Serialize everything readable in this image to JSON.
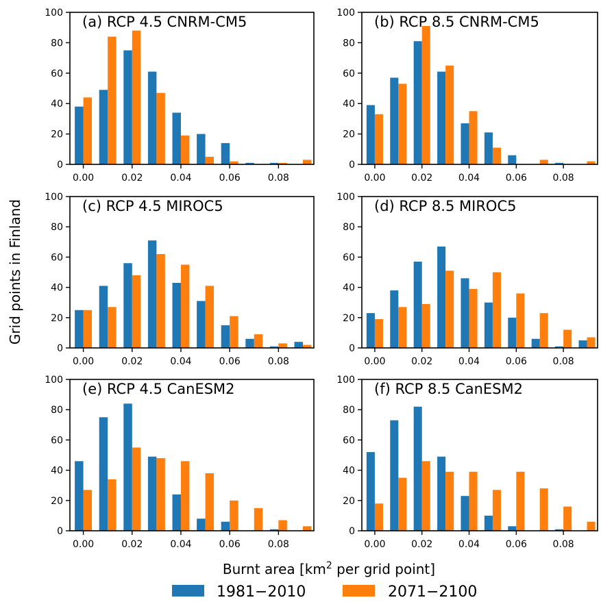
{
  "figure": {
    "ylabel": "Grid points in Finland",
    "xlabel_prefix": "Burnt area [km",
    "xlabel_sup": "2",
    "xlabel_suffix": " per grid point]"
  },
  "legend": [
    {
      "label": "1981−2010",
      "color": "#1f77b4"
    },
    {
      "label": "2071−2100",
      "color": "#ff7f0e"
    }
  ],
  "chart_data": [
    {
      "type": "bar",
      "title": "(a) RCP 4.5 CNRM-CM5",
      "x": [
        0.0,
        0.01,
        0.02,
        0.03,
        0.04,
        0.05,
        0.06,
        0.07,
        0.08,
        0.09
      ],
      "xticks": [
        "0.00",
        "0.02",
        "0.04",
        "0.06",
        "0.08"
      ],
      "yticks": [
        "0",
        "20",
        "40",
        "60",
        "80",
        "100"
      ],
      "ylim": [
        0,
        100
      ],
      "series": [
        {
          "name": "1981−2010",
          "values": [
            38,
            49,
            75,
            61,
            34,
            20,
            14,
            1,
            1,
            0
          ]
        },
        {
          "name": "2071−2100",
          "values": [
            44,
            84,
            88,
            47,
            19,
            5,
            2,
            0,
            1,
            3
          ]
        }
      ]
    },
    {
      "type": "bar",
      "title": "(b) RCP 8.5 CNRM-CM5",
      "x": [
        0.0,
        0.01,
        0.02,
        0.03,
        0.04,
        0.05,
        0.06,
        0.07,
        0.08,
        0.09
      ],
      "xticks": [
        "0.00",
        "0.02",
        "0.04",
        "0.06",
        "0.08"
      ],
      "yticks": [
        "0",
        "20",
        "40",
        "60",
        "80",
        "100"
      ],
      "ylim": [
        0,
        100
      ],
      "series": [
        {
          "name": "1981−2010",
          "values": [
            39,
            57,
            81,
            61,
            27,
            21,
            6,
            0,
            1,
            0
          ]
        },
        {
          "name": "2071−2100",
          "values": [
            33,
            53,
            91,
            65,
            35,
            11,
            0,
            3,
            0,
            2
          ]
        }
      ]
    },
    {
      "type": "bar",
      "title": "(c) RCP 4.5 MIROC5",
      "x": [
        0.0,
        0.01,
        0.02,
        0.03,
        0.04,
        0.05,
        0.06,
        0.07,
        0.08,
        0.09
      ],
      "xticks": [
        "0.00",
        "0.02",
        "0.04",
        "0.06",
        "0.08"
      ],
      "yticks": [
        "0",
        "20",
        "40",
        "60",
        "80",
        "100"
      ],
      "ylim": [
        0,
        100
      ],
      "series": [
        {
          "name": "1981−2010",
          "values": [
            25,
            41,
            56,
            71,
            43,
            31,
            15,
            6,
            1,
            4
          ]
        },
        {
          "name": "2071−2100",
          "values": [
            25,
            27,
            48,
            62,
            55,
            41,
            21,
            9,
            3,
            2
          ]
        }
      ]
    },
    {
      "type": "bar",
      "title": "(d) RCP 8.5 MIROC5",
      "x": [
        0.0,
        0.01,
        0.02,
        0.03,
        0.04,
        0.05,
        0.06,
        0.07,
        0.08,
        0.09
      ],
      "xticks": [
        "0.00",
        "0.02",
        "0.04",
        "0.06",
        "0.08"
      ],
      "yticks": [
        "0",
        "20",
        "40",
        "60",
        "80",
        "100"
      ],
      "ylim": [
        0,
        100
      ],
      "series": [
        {
          "name": "1981−2010",
          "values": [
            23,
            38,
            57,
            67,
            46,
            30,
            20,
            6,
            1,
            5
          ]
        },
        {
          "name": "2071−2100",
          "values": [
            19,
            27,
            29,
            51,
            39,
            50,
            36,
            23,
            12,
            7
          ]
        }
      ]
    },
    {
      "type": "bar",
      "title": "(e) RCP 4.5 CanESM2",
      "x": [
        0.0,
        0.01,
        0.02,
        0.03,
        0.04,
        0.05,
        0.06,
        0.07,
        0.08,
        0.09
      ],
      "xticks": [
        "0.00",
        "0.02",
        "0.04",
        "0.06",
        "0.08"
      ],
      "yticks": [
        "0",
        "20",
        "40",
        "60",
        "80",
        "100"
      ],
      "ylim": [
        0,
        100
      ],
      "series": [
        {
          "name": "1981−2010",
          "values": [
            46,
            75,
            84,
            49,
            24,
            8,
            6,
            0,
            1,
            0
          ]
        },
        {
          "name": "2071−2100",
          "values": [
            27,
            34,
            55,
            48,
            46,
            38,
            20,
            15,
            7,
            3
          ]
        }
      ]
    },
    {
      "type": "bar",
      "title": "(f) RCP 8.5 CanESM2",
      "x": [
        0.0,
        0.01,
        0.02,
        0.03,
        0.04,
        0.05,
        0.06,
        0.07,
        0.08,
        0.09
      ],
      "xticks": [
        "0.00",
        "0.02",
        "0.04",
        "0.06",
        "0.08"
      ],
      "yticks": [
        "0",
        "20",
        "40",
        "60",
        "80",
        "100"
      ],
      "ylim": [
        0,
        100
      ],
      "series": [
        {
          "name": "1981−2010",
          "values": [
            52,
            73,
            82,
            49,
            23,
            10,
            3,
            0,
            1,
            0
          ]
        },
        {
          "name": "2071−2100",
          "values": [
            18,
            35,
            46,
            39,
            39,
            27,
            39,
            28,
            16,
            6
          ]
        }
      ]
    }
  ]
}
